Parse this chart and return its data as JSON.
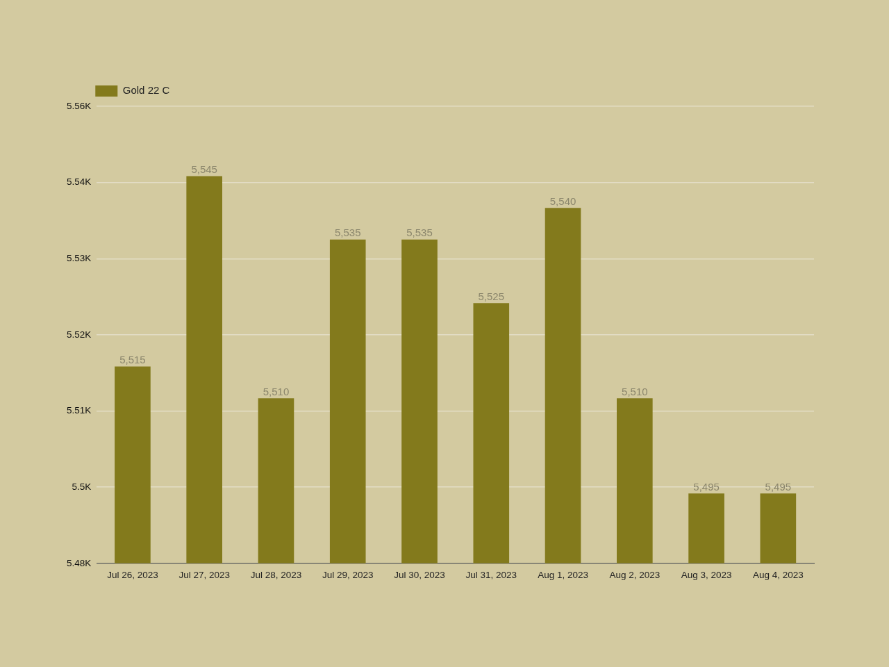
{
  "chart_data": {
    "type": "bar",
    "categories": [
      "Jul 26, 2023",
      "Jul 27, 2023",
      "Jul 28, 2023",
      "Jul 29, 2023",
      "Jul 30, 2023",
      "Jul 31, 2023",
      "Aug 1, 2023",
      "Aug 2, 2023",
      "Aug 3, 2023",
      "Aug 4, 2023"
    ],
    "series": [
      {
        "name": "Gold 22 C",
        "color": "#837a1c",
        "values": [
          5515,
          5545,
          5510,
          5535,
          5535,
          5525,
          5540,
          5510,
          5495,
          5495
        ],
        "value_labels": [
          "5,515",
          "5,545",
          "5,510",
          "5,535",
          "5,535",
          "5,525",
          "5,540",
          "5,510",
          "5,495",
          "5,495"
        ]
      }
    ],
    "ylim": [
      5484,
      5556
    ],
    "yticks": [
      {
        "value": 5484,
        "label": "5.48K"
      },
      {
        "value": 5496,
        "label": "5.5K"
      },
      {
        "value": 5508,
        "label": "5.51K"
      },
      {
        "value": 5520,
        "label": "5.52K"
      },
      {
        "value": 5532,
        "label": "5.53K"
      },
      {
        "value": 5544,
        "label": "5.54K"
      },
      {
        "value": 5556,
        "label": "5.56K"
      }
    ],
    "grid": "y",
    "legend": "top left"
  }
}
